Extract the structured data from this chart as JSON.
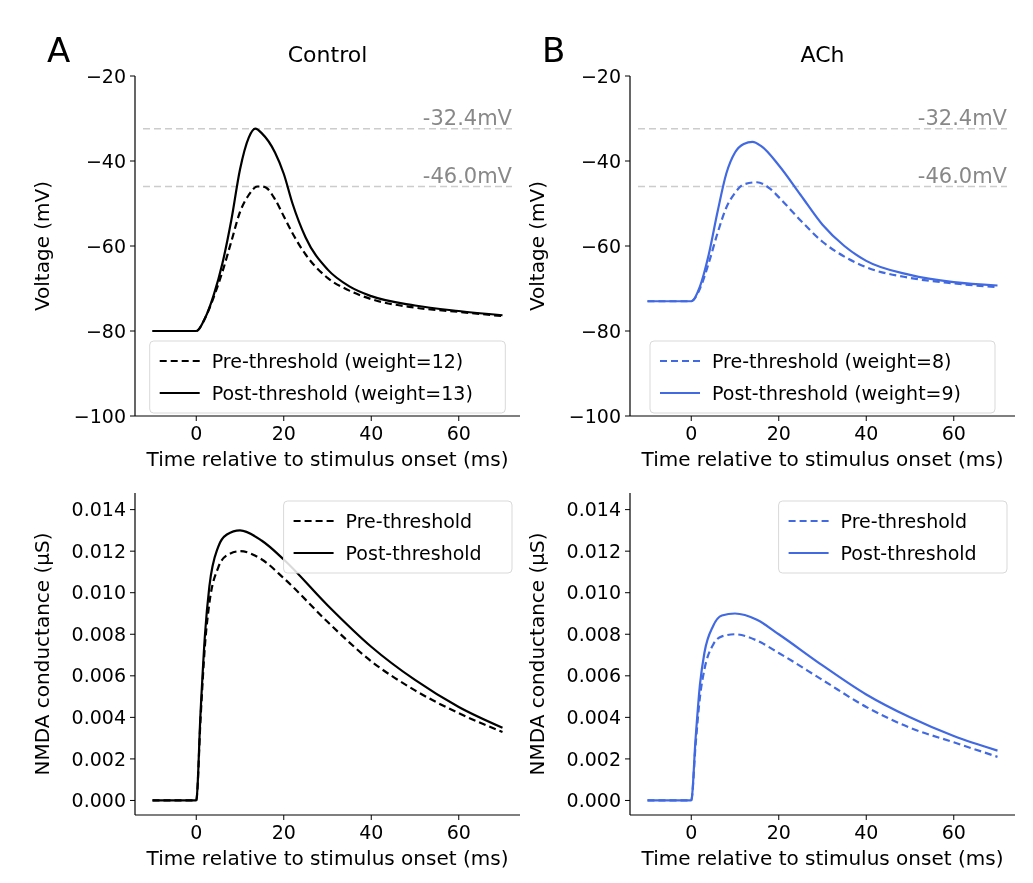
{
  "chart_data": [
    {
      "type": "line",
      "title": "Control",
      "xlabel": "Time relative to stimulus onset (ms)",
      "ylabel": "Voltage (mV)",
      "annotations": [
        "A"
      ],
      "xlim": [
        -14,
        74
      ],
      "ylim": [
        -100,
        -20
      ],
      "xticks": [
        0,
        20,
        40,
        60
      ],
      "yticks": [
        -100,
        -80,
        -60,
        -40,
        -20
      ],
      "grid": false,
      "legend": "bottom",
      "marker": "none",
      "ref_lines": [
        {
          "axis": "y",
          "value": -32.4,
          "label": "-32.4mV",
          "color": "#cccccc",
          "line_style": "dashed"
        },
        {
          "axis": "y",
          "value": -46.0,
          "label": "-46.0mV",
          "color": "#cccccc",
          "line_style": "dashed"
        }
      ],
      "series": [
        {
          "name": "Pre-threshold (weight=12)",
          "color": "#000000",
          "line_style": "dashed",
          "x": [
            -10,
            0,
            2,
            4,
            6,
            8,
            10,
            12,
            14,
            15,
            16,
            18,
            20,
            22,
            25,
            30,
            35,
            40,
            50,
            60,
            70
          ],
          "values": [
            -80,
            -80,
            -77,
            -72,
            -66,
            -59,
            -52,
            -48,
            -46,
            -46,
            -46.3,
            -49,
            -53,
            -57,
            -62,
            -67.5,
            -70.5,
            -72.5,
            -74.5,
            -75.5,
            -76.5
          ]
        },
        {
          "name": "Post-threshold (weight=13)",
          "color": "#000000",
          "line_style": "solid",
          "x": [
            -10,
            0,
            2,
            4,
            6,
            8,
            10,
            12,
            13.5,
            15,
            18,
            20,
            22,
            25,
            30,
            35,
            40,
            50,
            60,
            70
          ],
          "values": [
            -80,
            -80,
            -77,
            -71.5,
            -64,
            -54,
            -42,
            -34.5,
            -32.4,
            -33.5,
            -38,
            -43,
            -50,
            -58,
            -65.5,
            -69.5,
            -71.8,
            -74,
            -75.3,
            -76.3
          ]
        }
      ]
    },
    {
      "type": "line",
      "title": "ACh",
      "xlabel": "Time relative to stimulus onset (ms)",
      "ylabel": "Voltage (mV)",
      "annotations": [
        "B"
      ],
      "xlim": [
        -14,
        74
      ],
      "ylim": [
        -100,
        -20
      ],
      "xticks": [
        0,
        20,
        40,
        60
      ],
      "yticks": [
        -100,
        -80,
        -60,
        -40,
        -20
      ],
      "grid": false,
      "legend": "bottom",
      "marker": "none",
      "ref_lines": [
        {
          "axis": "y",
          "value": -32.4,
          "label": "-32.4mV",
          "color": "#cccccc",
          "line_style": "dashed"
        },
        {
          "axis": "y",
          "value": -46.0,
          "label": "-46.0mV",
          "color": "#cccccc",
          "line_style": "dashed"
        }
      ],
      "series": [
        {
          "name": "Pre-threshold (weight=8)",
          "color": "#4169e1",
          "line_style": "dashed",
          "x": [
            -10,
            0,
            2,
            4,
            6,
            8,
            10,
            12,
            15,
            18,
            20,
            25,
            30,
            35,
            40,
            50,
            60,
            70
          ],
          "values": [
            -73,
            -73,
            -70,
            -64,
            -57,
            -51,
            -47.5,
            -45.5,
            -45,
            -46.5,
            -48.5,
            -54,
            -59,
            -62.5,
            -65,
            -67.5,
            -68.8,
            -69.7
          ]
        },
        {
          "name": "Post-threshold (weight=9)",
          "color": "#4169e1",
          "line_style": "solid",
          "x": [
            -10,
            0,
            2,
            4,
            6,
            8,
            10,
            12,
            14,
            16,
            20,
            25,
            30,
            35,
            40,
            50,
            60,
            70
          ],
          "values": [
            -73,
            -73,
            -69.5,
            -62,
            -52,
            -43,
            -38,
            -36,
            -35.5,
            -36.5,
            -41,
            -48,
            -55,
            -60,
            -63.5,
            -66.8,
            -68.5,
            -69.3
          ]
        }
      ]
    },
    {
      "type": "line",
      "xlabel": "Time relative to stimulus onset (ms)",
      "ylabel": "NMDA conductance (μS)",
      "xlim": [
        -14,
        74
      ],
      "ylim": [
        -0.0007,
        0.0148
      ],
      "xticks": [
        0,
        20,
        40,
        60
      ],
      "yticks": [
        {
          "value": 0,
          "label": "0.000"
        },
        {
          "value": 0.002,
          "label": "0.002"
        },
        {
          "value": 0.004,
          "label": "0.004"
        },
        {
          "value": 0.006,
          "label": "0.006"
        },
        {
          "value": 0.008,
          "label": "0.008"
        },
        {
          "value": 0.01,
          "label": "0.010"
        },
        {
          "value": 0.012,
          "label": "0.012"
        },
        {
          "value": 0.014,
          "label": "0.014"
        }
      ],
      "grid": false,
      "legend": "top right",
      "marker": "none",
      "series": [
        {
          "name": "Pre-threshold",
          "color": "#000000",
          "line_style": "dashed",
          "x": [
            -10,
            0,
            1,
            2,
            3,
            5,
            7,
            10,
            15,
            20,
            30,
            40,
            50,
            60,
            70
          ],
          "values": [
            0,
            0,
            0.004,
            0.0075,
            0.0095,
            0.0112,
            0.0118,
            0.012,
            0.0116,
            0.0107,
            0.0086,
            0.0067,
            0.0053,
            0.0042,
            0.0033
          ]
        },
        {
          "name": "Post-threshold",
          "color": "#000000",
          "line_style": "solid",
          "x": [
            -10,
            0,
            1,
            2,
            3,
            5,
            7,
            10,
            15,
            20,
            30,
            40,
            50,
            60,
            70
          ],
          "values": [
            0,
            0,
            0.0043,
            0.008,
            0.0103,
            0.0122,
            0.0128,
            0.013,
            0.0125,
            0.0116,
            0.0094,
            0.0074,
            0.0058,
            0.0045,
            0.0035
          ]
        }
      ]
    },
    {
      "type": "line",
      "xlabel": "Time relative to stimulus onset (ms)",
      "ylabel": "NMDA conductance (μS)",
      "xlim": [
        -14,
        74
      ],
      "ylim": [
        -0.0007,
        0.0148
      ],
      "xticks": [
        0,
        20,
        40,
        60
      ],
      "yticks": [
        {
          "value": 0,
          "label": "0.000"
        },
        {
          "value": 0.002,
          "label": "0.002"
        },
        {
          "value": 0.004,
          "label": "0.004"
        },
        {
          "value": 0.006,
          "label": "0.006"
        },
        {
          "value": 0.008,
          "label": "0.008"
        },
        {
          "value": 0.01,
          "label": "0.010"
        },
        {
          "value": 0.012,
          "label": "0.012"
        },
        {
          "value": 0.014,
          "label": "0.014"
        }
      ],
      "grid": false,
      "legend": "top right",
      "marker": "none",
      "series": [
        {
          "name": "Pre-threshold",
          "color": "#4169e1",
          "line_style": "dashed",
          "x": [
            -10,
            0,
            1,
            2,
            3,
            5,
            7,
            10,
            15,
            20,
            30,
            40,
            50,
            60,
            70
          ],
          "values": [
            0,
            0,
            0.0027,
            0.005,
            0.0063,
            0.0075,
            0.0079,
            0.008,
            0.0077,
            0.0071,
            0.0058,
            0.0045,
            0.0035,
            0.0028,
            0.0021
          ]
        },
        {
          "name": "Post-threshold",
          "color": "#4169e1",
          "line_style": "solid",
          "x": [
            -10,
            0,
            1,
            2,
            3,
            5,
            7,
            10,
            15,
            20,
            30,
            40,
            50,
            60,
            70
          ],
          "values": [
            0,
            0,
            0.003,
            0.0056,
            0.0071,
            0.0084,
            0.0089,
            0.009,
            0.0087,
            0.008,
            0.0065,
            0.0051,
            0.004,
            0.0031,
            0.0024
          ]
        }
      ]
    }
  ]
}
